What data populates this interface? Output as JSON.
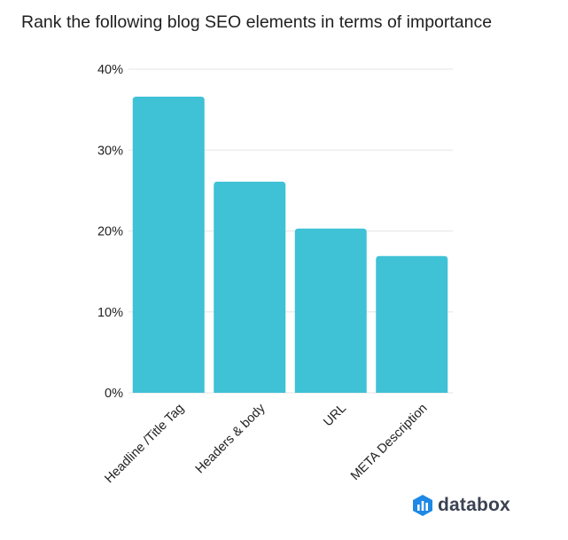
{
  "chart_data": {
    "type": "bar",
    "title": "Rank the following blog SEO elements in terms of importance",
    "categories": [
      "Headline /Title Tag",
      "Headers & body",
      "URL",
      "META Description"
    ],
    "values": [
      36.6,
      26.1,
      20.3,
      16.9
    ],
    "ylim": [
      0,
      40
    ],
    "yticks": [
      "0%",
      "10%",
      "20%",
      "30%",
      "40%"
    ],
    "ytick_values": [
      0,
      10,
      20,
      30,
      40
    ],
    "grid": true,
    "bar_color": "#3fc1d6",
    "grid_color": "#e6e6e6"
  },
  "brand": {
    "name": "databox",
    "icon": "databox-logo-icon",
    "color": "#3b4252",
    "accent": "#1e88e5"
  }
}
